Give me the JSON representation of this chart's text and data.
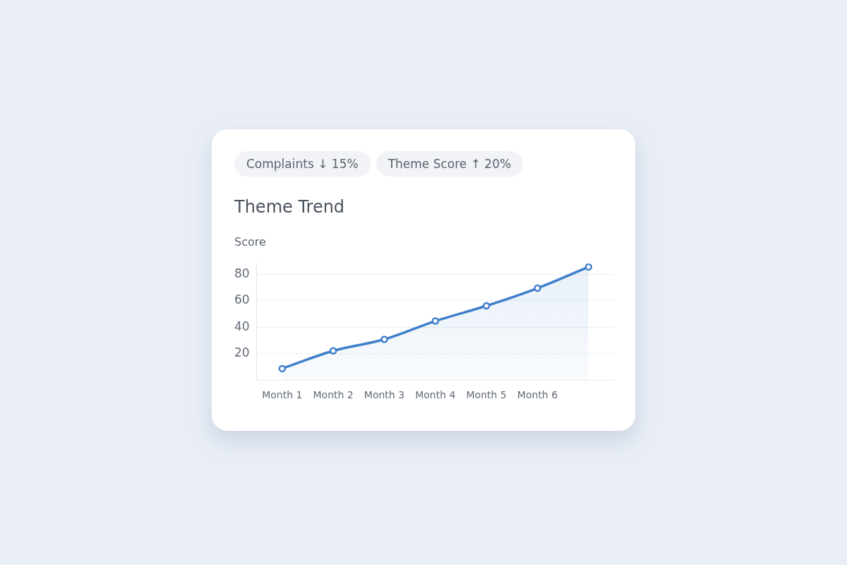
{
  "chart_data": {
    "type": "area",
    "title": "Theme Trend",
    "ylabel": "Score",
    "annotations": [
      "Complaints ↓ 15%",
      "Theme Score ↑ 20%"
    ],
    "categories": [
      "Month 1",
      "Month 2",
      "Month 3",
      "Month 4",
      "Month 5",
      "Month 6",
      null
    ],
    "series": [
      {
        "color": "#3f7fca",
        "values": [
          8.7,
          22.1,
          30.8,
          44.6,
          56.1,
          69.4,
          85.5
        ]
      }
    ],
    "ylim": [
      0,
      88
    ],
    "yticks": [
      20,
      40,
      60,
      80
    ],
    "grid": "y",
    "legend": false,
    "marker": "circle",
    "line_style": "solid"
  }
}
